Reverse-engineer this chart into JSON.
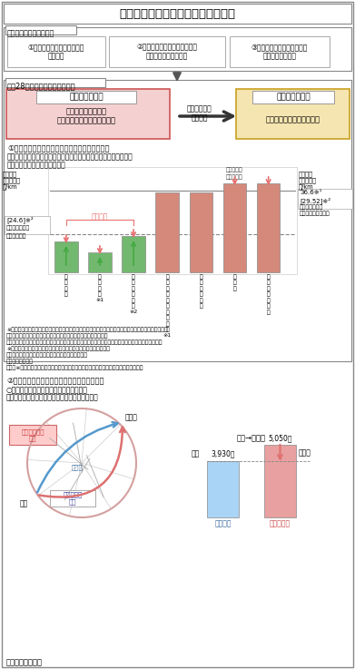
{
  "title": "首都圏の新たな高速道路料金の概要",
  "section1_title": "首都圏料金の賢い３原則",
  "principles": [
    "①利用度合いに応じた公平な\n料金体系",
    "②管理主体を超えたシンプルで\nシームレスな料金体系",
    "③交通流動の最適化のための\n戦略的な料金体系"
  ],
  "section2_title": "平成28年４月からの料金の概要",
  "left_box_title": "整備重視の料金",
  "left_box_body": "整備の経緯の違い等\n料金水準や車種区分等に相違",
  "middle_label": "圏央道などの\n整備進展",
  "right_box_title": "利用重視の料金",
  "right_box_body": "料金水準や車種区分を統一",
  "bar_colors_green": "#72b86e",
  "bar_colors_salmon": "#d4897a",
  "note_kasen": "激変緩和",
  "level_24_label": "[24.6]",
  "level_24_note": "※²",
  "level_36_label1": "36.6※¹",
  "level_36_label2": "[29.52]※²",
  "ylabel_left1": "普通車",
  "ylabel_left2": "全線利用）",
  "ylabel_left3": "円/km",
  "ylabel_right1": "（普通車",
  "ylabel_right2": "全線利用）",
  "ylabel_right3": "円/km",
  "label_left_box1": "高速自動車国道",
  "label_left_box2": "（普通区間）",
  "label_right_box1": "高速自動車国道",
  "label_right_box2": "（大都市近郊区間）",
  "kasen_label1": "（海老名～",
  "kasen_label2": "久喜白岡）",
  "x_labels": [
    "第\n三\n京\n浜",
    "京\n葉\n道\n路\n※1",
    "千\n葉\n東\n金\n道\n路\n※2",
    "埼\n玉\n・\n中\n央\n道\n均\n一\n区\n間\n※1",
    "首\n都\n高\n速\n道\n路",
    "圏\n央\n道",
    "横\n浜\n横\n須\n賀\n道\n路"
  ],
  "footnotes": [
    "※１　物流への影響等を考慮し、上限料金を設定す　注１）高速自動車国道（大都市近郊区間）は、東名",
    "　　　るなど激変緩和措置を実施（ただし、京葉道　　　高速の例",
    "　　　路は、地域内料金は据え置き）　　　　　　注２）消費税及びターミナルチャージを除いた場合",
    "※２　千葉県内の高速ネットワーク　　　　　　　　　の料金水準",
    "　　　（千葉外環、圏央道（松尾横芝～大栄））の整",
    "　　　成後に整理",
    "　　　※あわせて、車種区分を５車種区分に整理統一（首都高速について段階的に実施）"
  ],
  "sec2_line1": "②起終点を基本とした継ぎ目のない料金の実現",
  "sec2_line2": "○起終点間の最短距離を基本に料金を決定",
  "sec2_line3": "　（圏央道経由の料金＞都心経由の料金の場合）",
  "map_label_sakura": "桜土浦",
  "map_label_atsugi": "厚木",
  "map_label_tokyo": "東京湾",
  "label_enkan": "圏央道経由の\n料金",
  "label_toshin": "都心経由の\n料金",
  "route_title": "厚木→桜土浦",
  "bar2_labels": [
    "都心経由",
    "圏央道経由"
  ],
  "bar2_values": [
    3930,
    5050
  ],
  "bar2_label1": "3,930円",
  "bar2_label2": "5,050円",
  "bar2_colors": [
    "#aad4f5",
    "#e8a0a0"
  ],
  "bar2_annotation": "引下げ",
  "bar2_ylabel": "料金",
  "source": "資料）国土交通省",
  "bg_color": "#ffffff"
}
